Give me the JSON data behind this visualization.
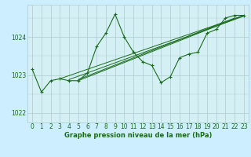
{
  "xlabel": "Graphe pression niveau de la mer (hPa)",
  "background_color": "#cceeff",
  "plot_bg_color": "#d4f0f5",
  "grid_color": "#aacccc",
  "line_color": "#1a6b1a",
  "ylim": [
    1021.75,
    1024.85
  ],
  "xlim": [
    -0.5,
    23.5
  ],
  "yticks": [
    1022,
    1023,
    1024
  ],
  "xticks": [
    0,
    1,
    2,
    3,
    4,
    5,
    6,
    7,
    8,
    9,
    10,
    11,
    12,
    13,
    14,
    15,
    16,
    17,
    18,
    19,
    20,
    21,
    22,
    23
  ],
  "main_x": [
    0,
    1,
    2,
    3,
    4,
    5,
    6,
    7,
    8,
    9,
    10,
    11,
    12,
    13,
    14,
    15,
    16,
    17,
    18,
    19,
    20,
    21,
    22,
    23
  ],
  "main_y": [
    1023.15,
    1022.55,
    1022.85,
    1022.9,
    1022.85,
    1022.85,
    1023.05,
    1023.75,
    1024.1,
    1024.6,
    1024.0,
    1023.6,
    1023.35,
    1023.25,
    1022.8,
    1022.95,
    1023.45,
    1023.55,
    1023.6,
    1024.1,
    1024.2,
    1024.5,
    1024.57,
    1024.57
  ],
  "trend_lines": [
    {
      "x": [
        3,
        23
      ],
      "y": [
        1022.9,
        1024.57
      ]
    },
    {
      "x": [
        4,
        23
      ],
      "y": [
        1022.88,
        1024.55
      ]
    },
    {
      "x": [
        5,
        22
      ],
      "y": [
        1022.88,
        1024.5
      ]
    },
    {
      "x": [
        5,
        23
      ],
      "y": [
        1022.85,
        1024.57
      ]
    }
  ]
}
